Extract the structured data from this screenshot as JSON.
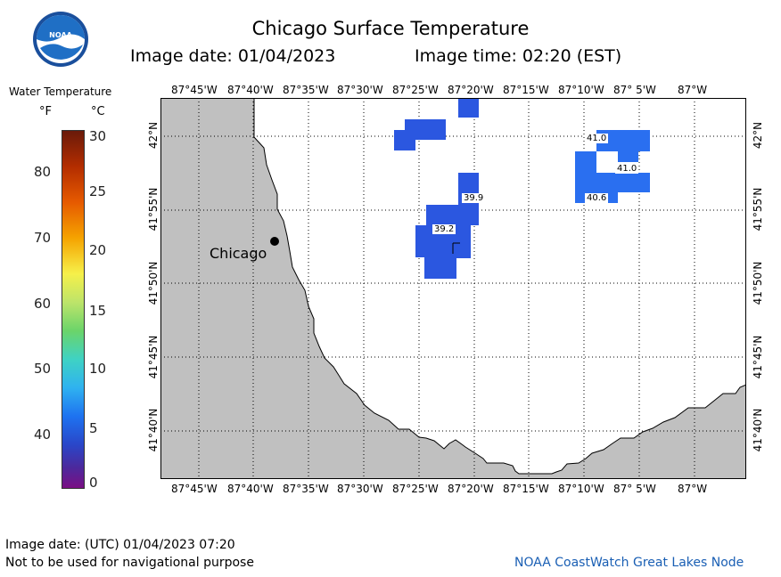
{
  "header": {
    "title": "Chicago Surface Temperature",
    "image_date": "Image date: 01/04/2023",
    "image_time": "Image time: 02:20 (EST)"
  },
  "legend": {
    "title": "Water Temperature",
    "unit_f": "°F",
    "unit_c": "°C",
    "f_ticks": [
      "80",
      "70",
      "60",
      "50",
      "40"
    ],
    "c_ticks": [
      "30",
      "25",
      "20",
      "15",
      "10",
      "5",
      "0"
    ]
  },
  "map": {
    "lon_labels": [
      "87°45'W",
      "87°40'W",
      "87°35'W",
      "87°30'W",
      "87°25'W",
      "87°20'W",
      "87°15'W",
      "87°10'W",
      "87° 5'W",
      "87°W"
    ],
    "lat_labels": [
      "42°N",
      "41°55'N",
      "41°50'N",
      "41°45'N",
      "41°40'N"
    ],
    "city_label": "Chicago",
    "observations": [
      "41.0",
      "41.0",
      "40.6",
      "39.9",
      "39.2"
    ],
    "colors": {
      "land": "#c0c0c0",
      "water": "#ffffff",
      "temp_cell_a": "#2b57e0",
      "temp_cell_b": "#2a6ff0"
    }
  },
  "footer": {
    "utc_date": "Image date: (UTC) 01/04/2023  07:20",
    "disclaimer": "Not to be used for navigational purpose",
    "credit": "NOAA CoastWatch Great Lakes Node"
  },
  "logo": {
    "text": "NOAA"
  }
}
